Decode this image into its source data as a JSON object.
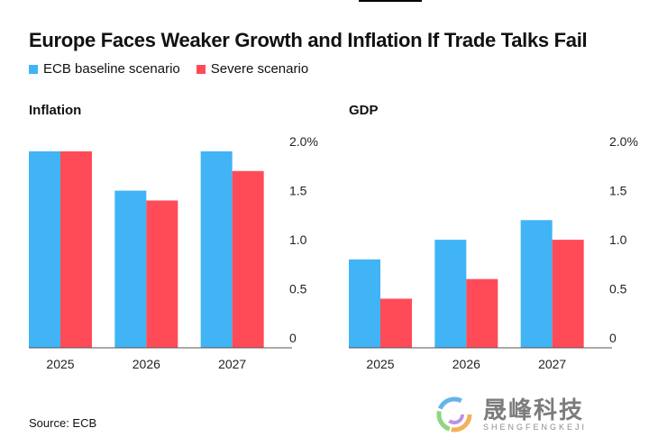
{
  "title": "Europe Faces Weaker Growth and Inflation If Trade Talks Fail",
  "legend": [
    {
      "label": "ECB baseline scenario",
      "color": "#40b4f5"
    },
    {
      "label": "Severe scenario",
      "color": "#ff4b58"
    }
  ],
  "source": "Source: ECB",
  "watermark": {
    "main": "晟峰科技",
    "sub": "SHENGFENGKEJI"
  },
  "chart_data": [
    {
      "type": "bar",
      "title": "Inflation",
      "categories": [
        "2025",
        "2026",
        "2027"
      ],
      "series": [
        {
          "name": "ECB baseline scenario",
          "values": [
            2.0,
            1.6,
            2.0
          ]
        },
        {
          "name": "Severe scenario",
          "values": [
            2.0,
            1.5,
            1.8
          ]
        }
      ],
      "ylim": [
        0,
        2.0
      ],
      "yticks": [
        "0",
        "0.5",
        "1.0",
        "1.5",
        "2.0%"
      ],
      "grid": false,
      "legend_position": "top-left"
    },
    {
      "type": "bar",
      "title": "GDP",
      "categories": [
        "2025",
        "2026",
        "2027"
      ],
      "series": [
        {
          "name": "ECB baseline scenario",
          "values": [
            0.9,
            1.1,
            1.3
          ]
        },
        {
          "name": "Severe scenario",
          "values": [
            0.5,
            0.7,
            1.1
          ]
        }
      ],
      "ylim": [
        0,
        2.0
      ],
      "yticks": [
        "0",
        "0.5",
        "1.0",
        "1.5",
        "2.0%"
      ],
      "grid": false,
      "legend_position": "top-left"
    }
  ]
}
